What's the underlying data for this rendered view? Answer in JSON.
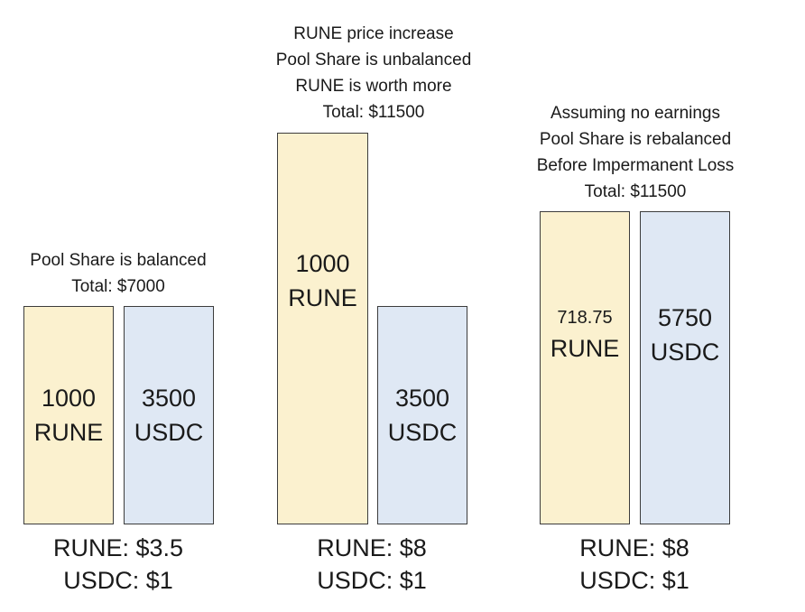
{
  "panels": [
    {
      "caption": [
        "Pool Share is balanced",
        "Total: $7000"
      ],
      "rune": {
        "amount": "1000",
        "token": "RUNE"
      },
      "usdc": {
        "amount": "3500",
        "token": "USDC"
      },
      "prices": {
        "rune": "RUNE: $3.5",
        "usdc": "USDC: $1"
      }
    },
    {
      "caption": [
        "RUNE price increase",
        "Pool Share is unbalanced",
        "RUNE is worth more",
        "Total: $11500"
      ],
      "rune": {
        "amount": "1000",
        "token": "RUNE"
      },
      "usdc": {
        "amount": "3500",
        "token": "USDC"
      },
      "prices": {
        "rune": "RUNE: $8",
        "usdc": "USDC: $1"
      }
    },
    {
      "caption": [
        "Assuming no earnings",
        "Pool Share is rebalanced",
        "Before Impermanent Loss",
        "Total: $11500"
      ],
      "rune": {
        "amount": "718.75",
        "token": "RUNE"
      },
      "usdc": {
        "amount": "5750",
        "token": "USDC"
      },
      "prices": {
        "rune": "RUNE: $8",
        "usdc": "USDC: $1"
      }
    }
  ],
  "colors": {
    "rune_fill": "#fbf1cf",
    "usdc_fill": "#dfe8f4",
    "border": "#3c3c3c"
  }
}
